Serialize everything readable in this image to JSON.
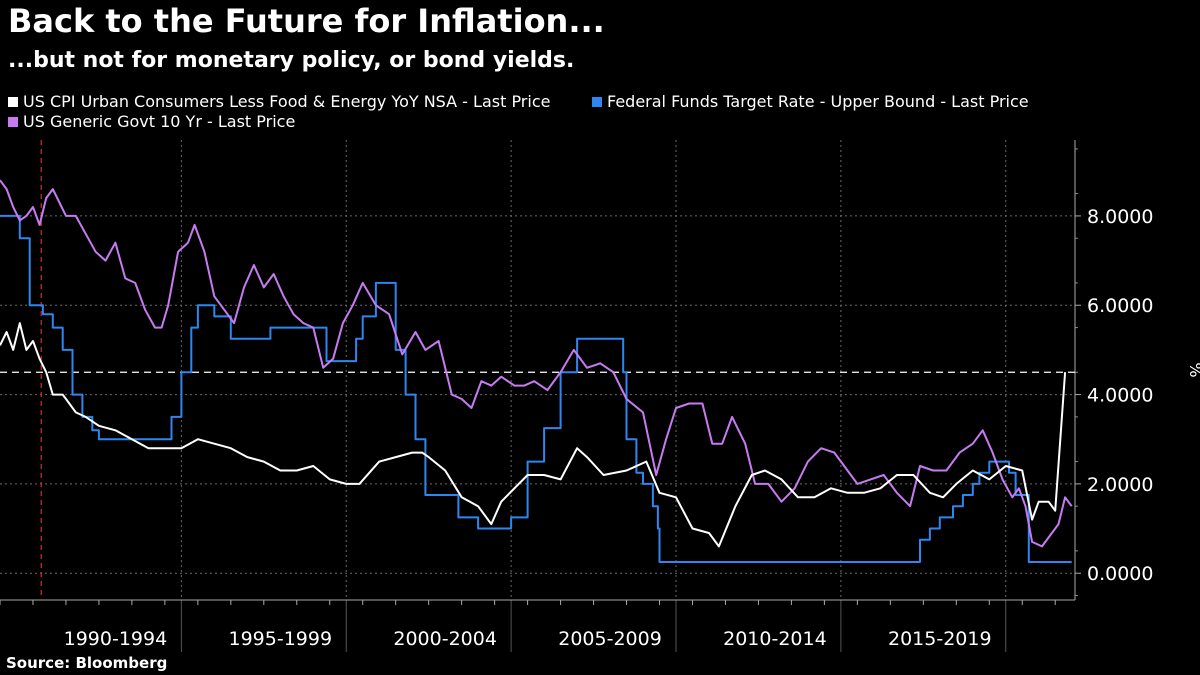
{
  "title": "Back to the Future for Inflation...",
  "subtitle": "...but not for monetary policy, or bond yields.",
  "source": "Source: Bloomberg",
  "colors": {
    "background": "#000000",
    "cpi": "#ffffff",
    "fed": "#2e86f0",
    "govt": "#c77bf0",
    "marker": "#d0302a",
    "grid": "#6a6a6a"
  },
  "legend": [
    {
      "label": "US CPI Urban Consumers Less Food & Energy YoY NSA - Last Price",
      "color": "#ffffff"
    },
    {
      "label": "Federal Funds Target Rate - Upper Bound - Last Price",
      "color": "#2e86f0"
    },
    {
      "label": "US Generic Govt 10 Yr - Last Price",
      "color": "#c77bf0"
    }
  ],
  "chart_data": {
    "type": "line",
    "title": "Back to the Future for Inflation...",
    "subtitle": "...but not for monetary policy, or bond yields.",
    "xlabel": "",
    "ylabel": "%",
    "xlim": [
      1989.0,
      2021.6
    ],
    "ylim": [
      -0.6,
      9.7
    ],
    "y_ticks": [
      0,
      2,
      4,
      6,
      8
    ],
    "y_tick_labels": [
      "0.0000",
      "2.0000",
      "4.0000",
      "6.0000",
      "8.0000"
    ],
    "x_tick_labels": [
      "1990-1994",
      "1995-1999",
      "2000-2004",
      "2005-2009",
      "2010-2014",
      "2015-2019"
    ],
    "x_label_centers": [
      1992.5,
      1997.5,
      2002.5,
      2007.5,
      2012.5,
      2017.5
    ],
    "x_group_breaks": [
      1989.0,
      1994.5,
      1999.5,
      2004.5,
      2009.5,
      2014.5,
      2019.5
    ],
    "legend_position": "top-left",
    "grid": true,
    "reference_line": {
      "value": 4.5,
      "style": "dashed"
    },
    "marker_date": 1990.25,
    "series": [
      {
        "name": "US CPI Urban Consumers Less Food & Energy YoY NSA - Last Price",
        "x": [
          1989.0,
          1989.2,
          1989.4,
          1989.6,
          1989.8,
          1990.0,
          1990.2,
          1990.4,
          1990.6,
          1990.9,
          1991.0,
          1991.3,
          1991.6,
          1992.0,
          1992.5,
          1993.0,
          1993.5,
          1994.0,
          1994.5,
          1995.0,
          1995.5,
          1996.0,
          1996.5,
          1997.0,
          1997.5,
          1998.0,
          1998.5,
          1999.0,
          1999.5,
          1999.9,
          2000.5,
          2001.0,
          2001.5,
          2001.8,
          2002.0,
          2002.5,
          2003.0,
          2003.5,
          2003.9,
          2004.2,
          2004.6,
          2005.0,
          2005.5,
          2006.0,
          2006.5,
          2006.8,
          2007.3,
          2008.0,
          2008.6,
          2009.0,
          2009.5,
          2010.0,
          2010.5,
          2010.8,
          2011.3,
          2011.8,
          2012.2,
          2012.7,
          2013.2,
          2013.7,
          2014.2,
          2014.7,
          2015.2,
          2015.7,
          2016.2,
          2016.7,
          2017.2,
          2017.6,
          2018.0,
          2018.5,
          2019.0,
          2019.5,
          2020.0,
          2020.3,
          2020.5,
          2020.8,
          2021.0,
          2021.3
        ],
        "values": [
          5.1,
          5.4,
          5.0,
          5.6,
          5.0,
          5.2,
          4.8,
          4.5,
          4.0,
          4.0,
          3.9,
          3.6,
          3.5,
          3.3,
          3.2,
          3.0,
          2.8,
          2.8,
          2.8,
          3.0,
          2.9,
          2.8,
          2.6,
          2.5,
          2.3,
          2.3,
          2.4,
          2.1,
          2.0,
          2.0,
          2.5,
          2.6,
          2.7,
          2.7,
          2.6,
          2.3,
          1.7,
          1.5,
          1.1,
          1.6,
          1.9,
          2.2,
          2.2,
          2.1,
          2.8,
          2.6,
          2.2,
          2.3,
          2.5,
          1.8,
          1.7,
          1.0,
          0.9,
          0.6,
          1.5,
          2.2,
          2.3,
          2.1,
          1.7,
          1.7,
          1.9,
          1.8,
          1.8,
          1.9,
          2.2,
          2.2,
          1.8,
          1.7,
          2.0,
          2.3,
          2.1,
          2.4,
          2.3,
          1.2,
          1.6,
          1.6,
          1.4,
          4.5
        ]
      },
      {
        "name": "Federal Funds Target Rate - Upper Bound - Last Price",
        "x": [
          1989.0,
          1989.3,
          1989.6,
          1989.9,
          1990.3,
          1990.6,
          1990.9,
          1991.2,
          1991.5,
          1991.8,
          1992.0,
          1992.4,
          1993.0,
          1994.0,
          1994.2,
          1994.5,
          1994.8,
          1995.0,
          1995.5,
          1996.0,
          1996.5,
          1997.2,
          1998.5,
          1998.9,
          1999.5,
          1999.8,
          2000.0,
          2000.4,
          2000.9,
          2001.0,
          2001.3,
          2001.6,
          2001.9,
          2002.5,
          2002.9,
          2003.5,
          2004.5,
          2005.0,
          2005.5,
          2006.0,
          2006.5,
          2007.0,
          2007.6,
          2007.9,
          2008.0,
          2008.3,
          2008.5,
          2008.8,
          2008.95,
          2009.0,
          2015.9,
          2016.9,
          2017.2,
          2017.5,
          2017.9,
          2018.2,
          2018.5,
          2018.7,
          2019.0,
          2019.4,
          2019.6,
          2019.8,
          2020.0,
          2020.2,
          2021.5
        ],
        "values": [
          8.0,
          8.0,
          7.5,
          6.0,
          5.8,
          5.5,
          5.0,
          4.0,
          3.5,
          3.2,
          3.0,
          3.0,
          3.0,
          3.0,
          3.5,
          4.5,
          5.5,
          6.0,
          5.75,
          5.25,
          5.25,
          5.5,
          5.5,
          4.75,
          4.75,
          5.25,
          5.75,
          6.5,
          6.5,
          5.0,
          4.0,
          3.0,
          1.75,
          1.75,
          1.25,
          1.0,
          1.25,
          2.5,
          3.25,
          4.5,
          5.25,
          5.25,
          5.25,
          4.5,
          3.0,
          2.25,
          2.0,
          1.5,
          1.0,
          0.25,
          0.25,
          0.75,
          1.0,
          1.25,
          1.5,
          1.75,
          2.0,
          2.25,
          2.5,
          2.5,
          2.25,
          1.75,
          1.75,
          0.25,
          0.25
        ]
      },
      {
        "name": "US Generic Govt 10 Yr - Last Price",
        "x": [
          1989.0,
          1989.2,
          1989.4,
          1989.6,
          1989.8,
          1990.0,
          1990.2,
          1990.4,
          1990.6,
          1990.8,
          1991.0,
          1991.3,
          1991.6,
          1991.9,
          1992.2,
          1992.5,
          1992.8,
          1993.1,
          1993.4,
          1993.7,
          1993.9,
          1994.1,
          1994.4,
          1994.7,
          1994.9,
          1995.2,
          1995.5,
          1995.8,
          1996.1,
          1996.4,
          1996.7,
          1997.0,
          1997.3,
          1997.6,
          1997.9,
          1998.2,
          1998.5,
          1998.8,
          1999.1,
          1999.4,
          1999.7,
          2000.0,
          2000.4,
          2000.8,
          2001.2,
          2001.6,
          2001.9,
          2002.3,
          2002.7,
          2003.0,
          2003.3,
          2003.6,
          2003.9,
          2004.2,
          2004.6,
          2004.9,
          2005.2,
          2005.6,
          2006.0,
          2006.4,
          2006.8,
          2007.2,
          2007.6,
          2008.0,
          2008.5,
          2008.9,
          2009.2,
          2009.5,
          2009.9,
          2010.3,
          2010.6,
          2010.9,
          2011.2,
          2011.6,
          2011.9,
          2012.3,
          2012.7,
          2013.1,
          2013.5,
          2013.9,
          2014.3,
          2014.7,
          2015.0,
          2015.4,
          2015.8,
          2016.2,
          2016.6,
          2016.9,
          2017.3,
          2017.7,
          2018.1,
          2018.5,
          2018.8,
          2019.1,
          2019.4,
          2019.7,
          2019.9,
          2020.1,
          2020.3,
          2020.6,
          2020.9,
          2021.1,
          2021.3,
          2021.5
        ],
        "values": [
          8.8,
          8.6,
          8.2,
          7.9,
          8.0,
          8.2,
          7.8,
          8.4,
          8.6,
          8.3,
          8.0,
          8.0,
          7.6,
          7.2,
          7.0,
          7.4,
          6.6,
          6.5,
          5.9,
          5.5,
          5.5,
          6.0,
          7.2,
          7.4,
          7.8,
          7.2,
          6.2,
          5.9,
          5.6,
          6.4,
          6.9,
          6.4,
          6.7,
          6.2,
          5.8,
          5.6,
          5.5,
          4.6,
          4.8,
          5.6,
          6.0,
          6.5,
          6.0,
          5.8,
          4.9,
          5.4,
          5.0,
          5.2,
          4.0,
          3.9,
          3.7,
          4.3,
          4.2,
          4.4,
          4.2,
          4.2,
          4.3,
          4.1,
          4.5,
          5.0,
          4.6,
          4.7,
          4.5,
          3.9,
          3.6,
          2.2,
          3.0,
          3.7,
          3.8,
          3.8,
          2.9,
          2.9,
          3.5,
          2.9,
          2.0,
          2.0,
          1.6,
          1.9,
          2.5,
          2.8,
          2.7,
          2.3,
          2.0,
          2.1,
          2.2,
          1.8,
          1.5,
          2.4,
          2.3,
          2.3,
          2.7,
          2.9,
          3.2,
          2.7,
          2.1,
          1.7,
          1.9,
          1.5,
          0.7,
          0.6,
          0.9,
          1.1,
          1.7,
          1.5
        ]
      }
    ]
  }
}
